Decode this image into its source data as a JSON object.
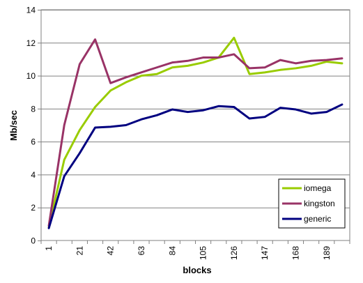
{
  "chart_data": {
    "type": "line",
    "title": "",
    "xlabel": "blocks",
    "ylabel": "Mb/sec",
    "x": [
      1,
      11,
      21,
      32,
      42,
      53,
      63,
      74,
      84,
      95,
      105,
      116,
      126,
      137,
      147,
      158,
      168,
      179,
      189,
      200
    ],
    "x_tick_labels": [
      "1",
      "21",
      "42",
      "63",
      "84",
      "105",
      "126",
      "147",
      "168",
      "189"
    ],
    "ylim": [
      0,
      14
    ],
    "y_ticks": [
      0,
      2,
      4,
      6,
      8,
      10,
      12,
      14
    ],
    "grid": true,
    "legend_position": "bottom-right",
    "series": [
      {
        "name": "iomega",
        "color": "#99CC00",
        "values": [
          0.8,
          4.9,
          6.7,
          8.1,
          9.1,
          9.6,
          10.0,
          10.1,
          10.5,
          10.6,
          10.8,
          11.1,
          12.3,
          10.1,
          10.2,
          10.35,
          10.45,
          10.6,
          10.85,
          10.75
        ]
      },
      {
        "name": "kingston",
        "color": "#993366",
        "values": [
          0.9,
          7.0,
          10.7,
          12.2,
          9.55,
          9.9,
          10.2,
          10.5,
          10.8,
          10.9,
          11.1,
          11.1,
          11.3,
          10.45,
          10.5,
          10.95,
          10.75,
          10.9,
          10.95,
          11.05
        ]
      },
      {
        "name": "generic",
        "color": "#000080",
        "values": [
          0.75,
          3.9,
          5.3,
          6.85,
          6.9,
          7.0,
          7.35,
          7.6,
          7.95,
          7.8,
          7.9,
          8.15,
          8.1,
          7.4,
          7.5,
          8.05,
          7.95,
          7.7,
          7.8,
          8.25
        ]
      }
    ]
  }
}
